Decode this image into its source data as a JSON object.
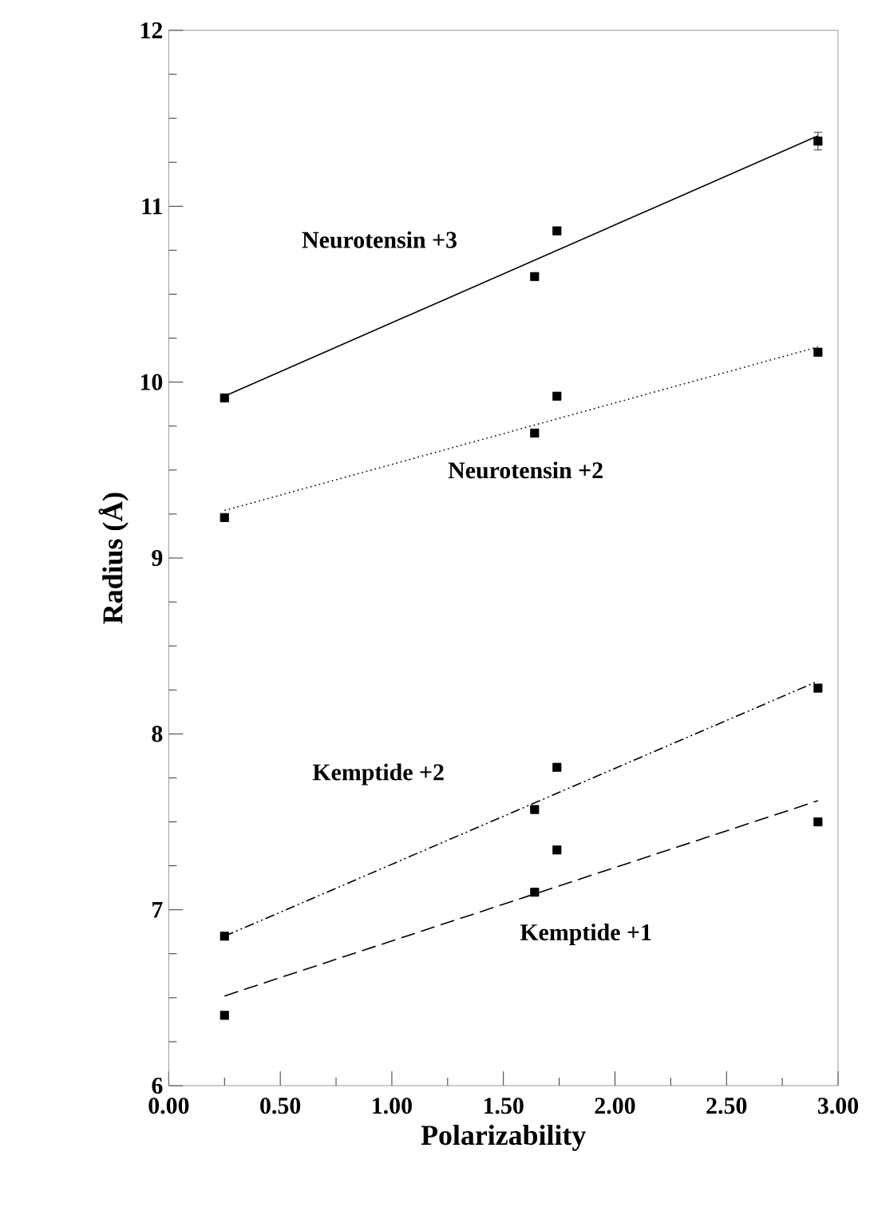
{
  "chart_data": {
    "type": "scatter",
    "xlabel": "Polarizability",
    "ylabel": "Radius (Å)",
    "xlim": [
      0,
      3
    ],
    "ylim": [
      6,
      12
    ],
    "xticks": [
      {
        "value": 0,
        "label": "0.00"
      },
      {
        "value": 0.5,
        "label": "0.50"
      },
      {
        "value": 1,
        "label": "1.00"
      },
      {
        "value": 1.5,
        "label": "1.50"
      },
      {
        "value": 2,
        "label": "2.00"
      },
      {
        "value": 2.5,
        "label": "2.50"
      },
      {
        "value": 3,
        "label": "3.00"
      }
    ],
    "yticks": [
      6,
      7,
      8,
      9,
      10,
      11,
      12
    ],
    "grid": false,
    "legend": false,
    "marker": "square",
    "series": [
      {
        "color": "#000000",
        "x": [
          0.25,
          1.64,
          1.74,
          2.91
        ],
        "values": [
          9.91,
          10.6,
          10.86,
          11.37
        ],
        "errors": [
          null,
          null,
          null,
          0.05
        ]
      },
      {
        "type": "line",
        "line_style": "solid",
        "marker": "none",
        "color": "#000000",
        "x": [
          0.25,
          2.91
        ],
        "values": [
          9.92,
          11.4
        ]
      },
      {
        "color": "#000000",
        "x": [
          0.25,
          1.64,
          1.74,
          2.91
        ],
        "values": [
          9.23,
          9.71,
          9.92,
          10.17
        ]
      },
      {
        "type": "line",
        "line_style": "dotted",
        "marker": "none",
        "color": "#000000",
        "x": [
          0.25,
          2.91
        ],
        "values": [
          9.27,
          10.2
        ]
      },
      {
        "color": "#000000",
        "x": [
          0.25,
          1.64,
          1.74,
          2.91
        ],
        "values": [
          6.85,
          7.57,
          7.81,
          8.26
        ]
      },
      {
        "type": "line",
        "line_style": "dashdotdotted",
        "marker": "none",
        "color": "#000000",
        "x": [
          0.25,
          2.91
        ],
        "values": [
          6.85,
          8.3
        ]
      },
      {
        "color": "#000000",
        "x": [
          0.25,
          1.64,
          1.74,
          2.91
        ],
        "values": [
          6.4,
          7.1,
          7.34,
          7.5
        ]
      },
      {
        "type": "line",
        "line_style": "dashed",
        "marker": "none",
        "color": "#000000",
        "x": [
          0.25,
          2.91
        ],
        "values": [
          6.51,
          7.62
        ]
      }
    ],
    "annotations": [
      "Neurotensin +3",
      "Neurotensin +2",
      "Kemptide +2",
      "Kemptide +1"
    ]
  }
}
